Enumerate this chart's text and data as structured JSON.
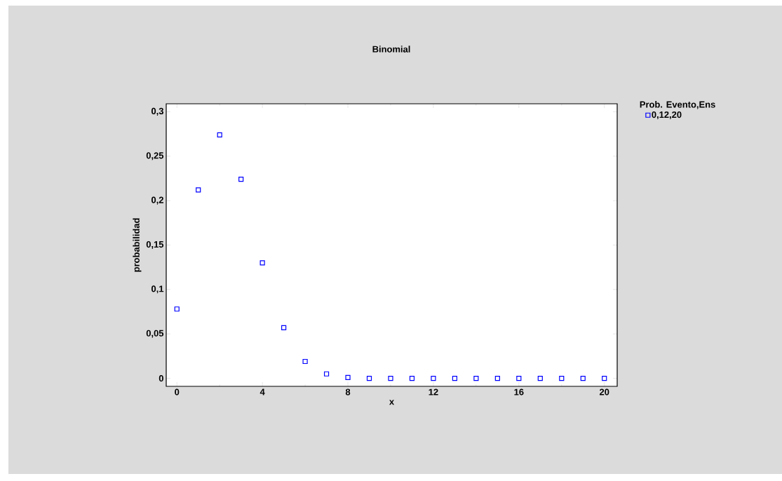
{
  "chart_data": {
    "type": "scatter",
    "title": "Binomial",
    "xlabel": "x",
    "ylabel": "probabilidad",
    "legend_title": "Prob. Evento,Ens",
    "x": [
      0,
      1,
      2,
      3,
      4,
      5,
      6,
      7,
      8,
      9,
      10,
      11,
      12,
      13,
      14,
      15,
      16,
      17,
      18,
      19,
      20
    ],
    "series": [
      {
        "name": "0,12,20",
        "color": "#0000ff",
        "values": [
          0.078,
          0.212,
          0.274,
          0.224,
          0.13,
          0.057,
          0.019,
          0.005,
          0.001,
          0,
          0,
          0,
          0,
          0,
          0,
          0,
          0,
          0,
          0,
          0,
          0
        ]
      }
    ],
    "xlim": [
      -0.5,
      20.6
    ],
    "ylim": [
      -0.009,
      0.309
    ],
    "xticks": [
      0,
      4,
      8,
      12,
      16,
      20
    ],
    "yticks": [
      0,
      {
        "value": 0.05,
        "label": "0,05"
      },
      {
        "value": 0.1,
        "label": "0,1"
      },
      {
        "value": 0.15,
        "label": "0,15"
      },
      {
        "value": 0.2,
        "label": "0,2"
      },
      {
        "value": 0.25,
        "label": "0,25"
      },
      {
        "value": 0.3,
        "label": "0,3"
      }
    ],
    "marker": "square",
    "legend": "top right",
    "grid": false
  }
}
